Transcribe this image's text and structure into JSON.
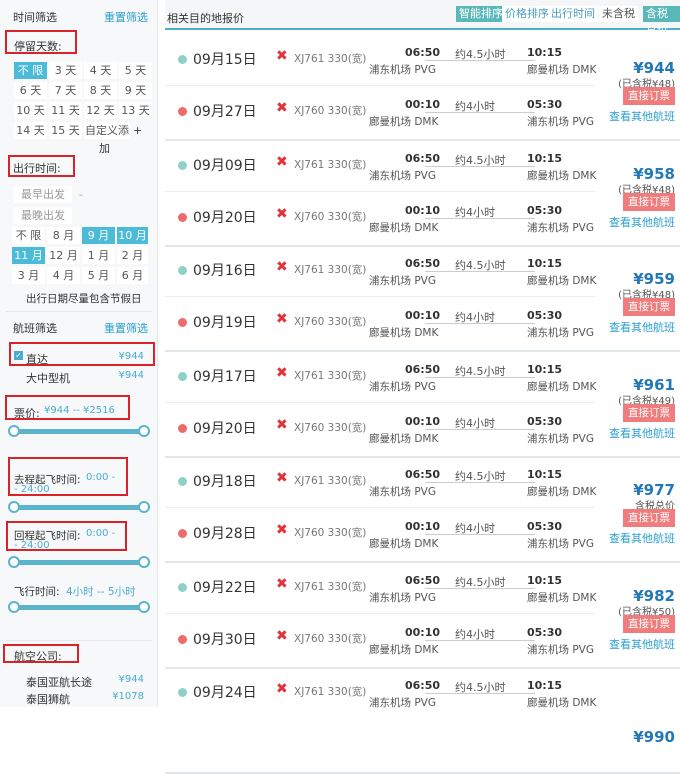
{
  "sidebar": {
    "time_filter": "时间筛选",
    "reset": "重置筛选",
    "stay_label": "停留天数:",
    "stay_options": [
      "不 限",
      "3 天",
      "4 天",
      "5 天",
      "6 天",
      "7 天",
      "8 天",
      "9 天",
      "10 天",
      "11 天",
      "12 天",
      "13 天",
      "14 天",
      "15 天"
    ],
    "stay_custom": "自定义添",
    "stay_custom2": "加",
    "stay_plus": "+",
    "travel_label": "出行时间:",
    "earliest": "最早出发",
    "latest": "最晚出发",
    "dash": "-",
    "months": [
      "不 限",
      "8 月",
      "9 月",
      "10 月",
      "11 月",
      "12 月",
      "1 月",
      "2 月",
      "3 月",
      "4 月",
      "5 月",
      "6 月"
    ],
    "months_selected": [
      "9 月",
      "10 月",
      "11 月"
    ],
    "holiday": "出行日期尽量包含节假日",
    "flight_filter": "航班筛选",
    "reset2": "重置筛选",
    "direct": "直达",
    "direct_price": "¥944",
    "direct_checked": true,
    "large": "大中型机",
    "large_price": "¥944",
    "price_label": "票价:",
    "price_range": "¥944 -- ¥2516",
    "out_label": "去程起飞时间:",
    "out_range_a": "0:00 -",
    "out_range_b": "- 24:00",
    "ret_label": "回程起飞时间:",
    "ret_range_a": "0:00 -",
    "ret_range_b": "- 24:00",
    "dur_label": "飞行时间:",
    "dur_range": "4小时 -- 5小时",
    "airline_label": "航空公司:",
    "airlines": [
      {
        "name": "泰国亚航长途",
        "price": "¥944"
      },
      {
        "name": "泰国狮航",
        "price": "¥1078"
      }
    ]
  },
  "header": {
    "title": "相关目的地报价",
    "sort_smart": "智能排序",
    "sort_price": "价格排序",
    "sort_time": "出行时间",
    "no_tax": "未含税",
    "with_tax": "含税总价",
    "accent": "#4bb0c8"
  },
  "common": {
    "out_flight": "XJ761 330(宽)",
    "ret_flight": "XJ760 330(宽)",
    "out_dep": "06:50",
    "out_dur": "约4.5小时",
    "out_arr": "10:15",
    "pvg": "浦东机场 PVG",
    "dmk": "廊曼机场 DMK",
    "ret_dep": "00:10",
    "ret_dur": "约4小时",
    "ret_arr": "05:30",
    "book": "直接订票",
    "other": "查看其他航班"
  },
  "results": [
    {
      "out_date": "09月15日",
      "ret_date": "09月27日",
      "price": "¥944",
      "tax": "(已含税¥48)"
    },
    {
      "out_date": "09月09日",
      "ret_date": "09月20日",
      "price": "¥958",
      "tax": "(已含税¥48)"
    },
    {
      "out_date": "09月16日",
      "ret_date": "09月19日",
      "price": "¥959",
      "tax": "(已含税¥48)"
    },
    {
      "out_date": "09月17日",
      "ret_date": "09月20日",
      "price": "¥961",
      "tax": "(已含税¥49)"
    },
    {
      "out_date": "09月18日",
      "ret_date": "09月28日",
      "price": "¥977",
      "tax": "含税总价"
    },
    {
      "out_date": "09月22日",
      "ret_date": "09月30日",
      "price": "¥982",
      "tax": "(已含税¥50)"
    },
    {
      "out_date": "09月24日",
      "price": "¥990"
    }
  ]
}
